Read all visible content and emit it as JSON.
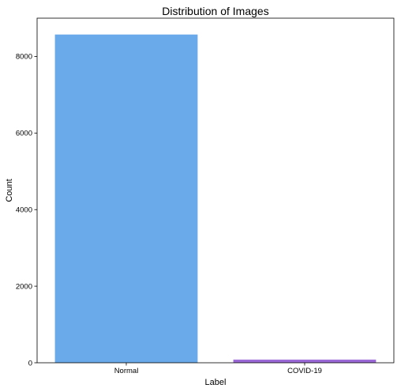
{
  "chart_data": {
    "type": "bar",
    "title": "Distribution of Images",
    "xlabel": "Label",
    "ylabel": "Count",
    "categories": [
      "Normal",
      "COVID-19"
    ],
    "values": [
      8573,
      82
    ],
    "bar_colors": [
      "#6aaaea",
      "#9b69d6"
    ],
    "ylim": [
      0,
      9000
    ],
    "yticks": [
      0,
      2000,
      4000,
      6000,
      8000
    ],
    "grid": false,
    "legend": "none"
  }
}
